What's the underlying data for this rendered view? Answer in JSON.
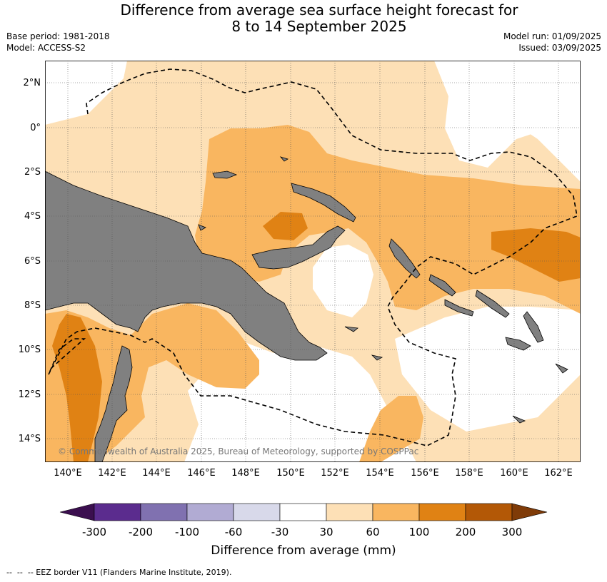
{
  "title_line1": "Difference from average sea surface height forecast for",
  "title_line2": "8 to 14 September 2025",
  "base_period": "Base period: 1981-2018",
  "model": "Model: ACCESS-S2",
  "model_run": "Model run: 01/09/2025",
  "issued": "Issued: 03/09/2025",
  "lat_labels": [
    "2°N",
    "0°",
    "2°S",
    "4°S",
    "6°S",
    "8°S",
    "10°S",
    "12°S",
    "14°S"
  ],
  "lon_labels": [
    "140°E",
    "142°E",
    "144°E",
    "146°E",
    "148°E",
    "150°E",
    "152°E",
    "154°E",
    "156°E",
    "158°E",
    "160°E",
    "162°E"
  ],
  "copyright": "© Commonwealth of Australia 2025, Bureau of Meteorology, supported by COSPPac",
  "colorbar": {
    "labels": [
      "-300",
      "-200",
      "-100",
      "-60",
      "-30",
      "30",
      "60",
      "100",
      "200",
      "300"
    ],
    "colors": [
      "#3b0f4f",
      "#5b2c8e",
      "#8071b0",
      "#b1abd3",
      "#d8d9ea",
      "#ffffff",
      "#fde0b6",
      "#f9b660",
      "#e08214",
      "#b35806",
      "#7f3b08"
    ],
    "title": "Difference from average (mm)"
  },
  "footnote": "--  --  -- EEZ border V11 (Flanders Marine Institute, 2019).",
  "map_colors": {
    "land": "#808080",
    "anomaly_30_60": "#fde0b6",
    "anomaly_60_100": "#f9b660",
    "anomaly_100_200": "#e08214"
  }
}
